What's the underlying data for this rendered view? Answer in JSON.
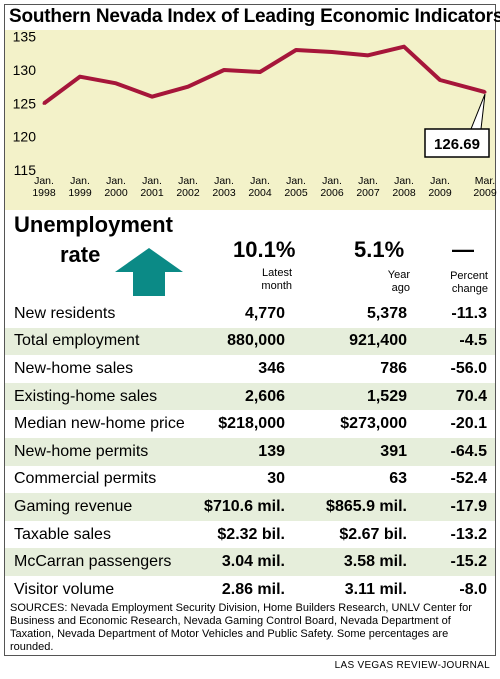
{
  "title": "Southern Nevada Index of Leading Economic Indicators",
  "chart_data": {
    "type": "line",
    "title": "Southern Nevada Index of Leading Economic Indicators",
    "x": [
      "Jan. 1998",
      "Jan. 1999",
      "Jan. 2000",
      "Jan. 2001",
      "Jan. 2002",
      "Jan. 2003",
      "Jan. 2004",
      "Jan. 2005",
      "Jan. 2006",
      "Jan. 2007",
      "Jan. 2008",
      "Jan. 2009",
      "Mar. 2009"
    ],
    "x_labels": [
      [
        "Jan.",
        "1998"
      ],
      [
        "Jan.",
        "1999"
      ],
      [
        "Jan.",
        "2000"
      ],
      [
        "Jan.",
        "2001"
      ],
      [
        "Jan.",
        "2002"
      ],
      [
        "Jan.",
        "2003"
      ],
      [
        "Jan.",
        "2004"
      ],
      [
        "Jan.",
        "2005"
      ],
      [
        "Jan.",
        "2006"
      ],
      [
        "Jan.",
        "2007"
      ],
      [
        "Jan.",
        "2008"
      ],
      [
        "Jan.",
        "2009"
      ],
      [
        "Mar.",
        "2009"
      ]
    ],
    "values": [
      125,
      129,
      128,
      126,
      127.5,
      130,
      129.7,
      133,
      132.7,
      132.2,
      133.5,
      128.5,
      126.69
    ],
    "y_ticks": [
      "135",
      "130",
      "125",
      "120",
      "115"
    ],
    "ylim": [
      115,
      136
    ],
    "callout": "126.69",
    "line_color": "#a6163a",
    "background": "#f3f2c9"
  },
  "unemployment": {
    "title": "Unemployment",
    "subtitle": "rate",
    "latest": "10.1%",
    "year_ago": "5.1%",
    "change": "—",
    "arrow_color": "#0b8a86"
  },
  "columns": {
    "latest": [
      "Latest",
      "month"
    ],
    "year_ago": [
      "Year",
      "ago"
    ],
    "change": [
      "Percent",
      "change"
    ]
  },
  "rows": [
    {
      "label": "New residents",
      "latest": "4,770",
      "year_ago": "5,378",
      "change": "-11.3"
    },
    {
      "label": "Total employment",
      "latest": "880,000",
      "year_ago": "921,400",
      "change": "-4.5"
    },
    {
      "label": "New-home sales",
      "latest": "346",
      "year_ago": "786",
      "change": "-56.0"
    },
    {
      "label": "Existing-home sales",
      "latest": "2,606",
      "year_ago": "1,529",
      "change": "70.4"
    },
    {
      "label": "Median new-home price",
      "latest": "$218,000",
      "year_ago": "$273,000",
      "change": "-20.1"
    },
    {
      "label": "New-home permits",
      "latest": "139",
      "year_ago": "391",
      "change": "-64.5"
    },
    {
      "label": "Commercial permits",
      "latest": "30",
      "year_ago": "63",
      "change": "-52.4"
    },
    {
      "label": "Gaming revenue",
      "latest": "$710.6 mil.",
      "year_ago": "$865.9 mil.",
      "change": "-17.9"
    },
    {
      "label": "Taxable sales",
      "latest": "$2.32 bil.",
      "year_ago": "$2.67 bil.",
      "change": "-13.2"
    },
    {
      "label": "McCarran passengers",
      "latest": "3.04 mil.",
      "year_ago": "3.58 mil.",
      "change": "-15.2"
    },
    {
      "label": "Visitor volume",
      "latest": "2.86 mil.",
      "year_ago": "3.11 mil.",
      "change": "-8.0"
    }
  ],
  "sources": "SOURCES: Nevada Employment Security Division, Home Builders Research, UNLV Center for Business and Economic Research, Nevada Gaming Control Board, Nevada Department of Taxation, Nevada Department of Motor Vehicles and Public Safety. Some percentages are rounded.",
  "credit": "LAS VEGAS REVIEW-JOURNAL"
}
